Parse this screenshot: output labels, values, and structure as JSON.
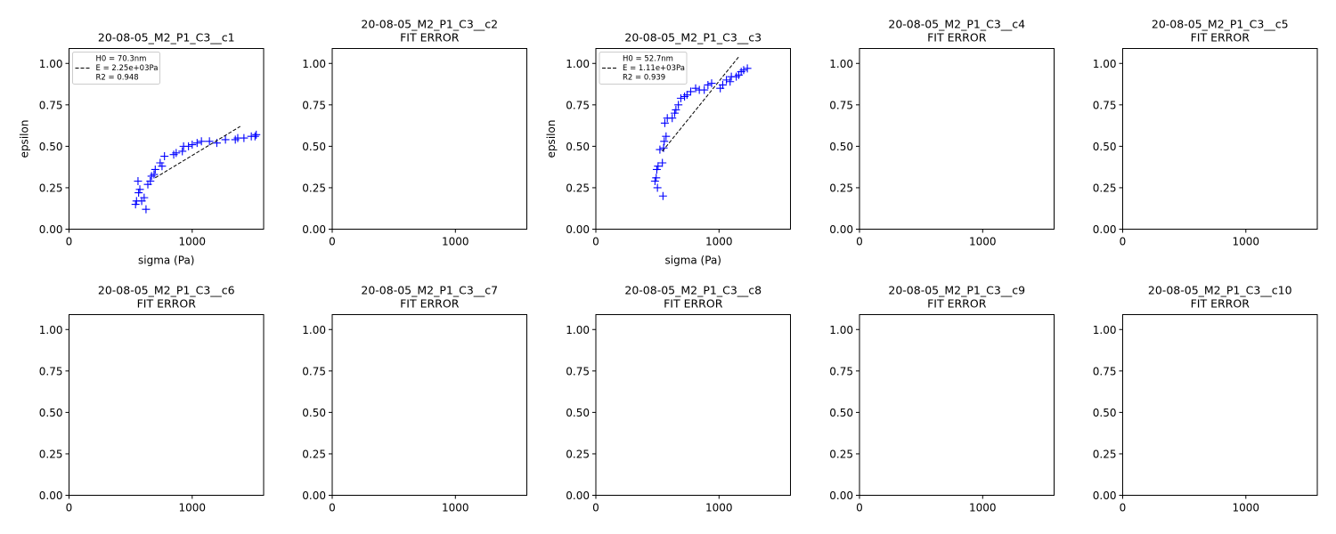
{
  "chart_data": [
    {
      "type": "scatter",
      "title": "20-08-05_M2_P1_C3__c1",
      "subtitle": "",
      "xlabel": "sigma (Pa)",
      "ylabel": "epsilon",
      "xlim": [
        0,
        1580
      ],
      "ylim": [
        0,
        1.09
      ],
      "xticks": [
        0,
        1000
      ],
      "yticks": [
        0.0,
        0.25,
        0.5,
        0.75,
        1.0
      ],
      "yticklabels": [
        "0.00",
        "0.25",
        "0.50",
        "0.75",
        "1.00"
      ],
      "legend": {
        "placement": "top-left",
        "entries": [
          "H0 = 70.3nm",
          "E = 2.25e+03Pa",
          "R2 = 0.948"
        ]
      },
      "series": [
        {
          "marker": "plus",
          "color": "#0000ff",
          "x": [
            540,
            548,
            560,
            565,
            575,
            590,
            610,
            625,
            640,
            660,
            670,
            690,
            700,
            740,
            755,
            775,
            850,
            870,
            920,
            930,
            970,
            1000,
            1040,
            1075,
            1140,
            1200,
            1270,
            1350,
            1370,
            1420,
            1480,
            1510,
            1520
          ],
          "y": [
            0.15,
            0.17,
            0.29,
            0.22,
            0.24,
            0.17,
            0.19,
            0.12,
            0.27,
            0.29,
            0.32,
            0.33,
            0.36,
            0.4,
            0.38,
            0.44,
            0.45,
            0.46,
            0.47,
            0.5,
            0.5,
            0.51,
            0.52,
            0.53,
            0.53,
            0.52,
            0.54,
            0.54,
            0.55,
            0.55,
            0.56,
            0.56,
            0.57
          ]
        },
        {
          "style": "dashed-fit",
          "color": "#000000",
          "x": [
            700,
            1390
          ],
          "y": [
            0.31,
            0.62
          ]
        }
      ]
    },
    {
      "type": "scatter",
      "title": "20-08-05_M2_P1_C3__c2",
      "subtitle": "FIT ERROR",
      "xlim": [
        0,
        1580
      ],
      "ylim": [
        0,
        1.09
      ],
      "xticks": [
        0,
        1000
      ],
      "yticks": [
        0.0,
        0.25,
        0.5,
        0.75,
        1.0
      ],
      "yticklabels": [
        "0.00",
        "0.25",
        "0.50",
        "0.75",
        "1.00"
      ],
      "series": []
    },
    {
      "type": "scatter",
      "title": "20-08-05_M2_P1_C3__c3",
      "subtitle": "",
      "xlabel": "sigma (Pa)",
      "ylabel": "epsilon",
      "xlim": [
        0,
        1580
      ],
      "ylim": [
        0,
        1.09
      ],
      "xticks": [
        0,
        1000
      ],
      "yticks": [
        0.0,
        0.25,
        0.5,
        0.75,
        1.0
      ],
      "yticklabels": [
        "0.00",
        "0.25",
        "0.50",
        "0.75",
        "1.00"
      ],
      "legend": {
        "placement": "top-left",
        "entries": [
          "H0 = 52.7nm",
          "E = 1.11e+03Pa",
          "R2 = 0.939"
        ]
      },
      "series": [
        {
          "marker": "plus",
          "color": "#0000ff",
          "x": [
            480,
            490,
            495,
            500,
            505,
            520,
            540,
            545,
            550,
            555,
            560,
            570,
            580,
            620,
            640,
            650,
            670,
            690,
            720,
            740,
            770,
            810,
            840,
            880,
            910,
            940,
            1010,
            1030,
            1060,
            1090,
            1100,
            1140,
            1160,
            1180,
            1200,
            1230
          ],
          "y": [
            0.29,
            0.31,
            0.36,
            0.25,
            0.38,
            0.48,
            0.4,
            0.2,
            0.49,
            0.53,
            0.64,
            0.56,
            0.67,
            0.67,
            0.7,
            0.72,
            0.75,
            0.79,
            0.8,
            0.81,
            0.83,
            0.85,
            0.84,
            0.84,
            0.87,
            0.88,
            0.85,
            0.87,
            0.9,
            0.89,
            0.92,
            0.92,
            0.93,
            0.95,
            0.96,
            0.97
          ]
        },
        {
          "style": "dashed-fit",
          "color": "#000000",
          "x": [
            540,
            1160
          ],
          "y": [
            0.47,
            1.04
          ]
        }
      ]
    },
    {
      "type": "scatter",
      "title": "20-08-05_M2_P1_C3__c4",
      "subtitle": "FIT ERROR",
      "xlim": [
        0,
        1580
      ],
      "ylim": [
        0,
        1.09
      ],
      "xticks": [
        0,
        1000
      ],
      "yticks": [
        0.0,
        0.25,
        0.5,
        0.75,
        1.0
      ],
      "yticklabels": [
        "0.00",
        "0.25",
        "0.50",
        "0.75",
        "1.00"
      ],
      "series": []
    },
    {
      "type": "scatter",
      "title": "20-08-05_M2_P1_C3__c5",
      "subtitle": "FIT ERROR",
      "xlim": [
        0,
        1580
      ],
      "ylim": [
        0,
        1.09
      ],
      "xticks": [
        0,
        1000
      ],
      "yticks": [
        0.0,
        0.25,
        0.5,
        0.75,
        1.0
      ],
      "yticklabels": [
        "0.00",
        "0.25",
        "0.50",
        "0.75",
        "1.00"
      ],
      "series": []
    },
    {
      "type": "scatter",
      "title": "20-08-05_M2_P1_C3__c6",
      "subtitle": "FIT ERROR",
      "xlim": [
        0,
        1580
      ],
      "ylim": [
        0,
        1.09
      ],
      "xticks": [
        0,
        1000
      ],
      "yticks": [
        0.0,
        0.25,
        0.5,
        0.75,
        1.0
      ],
      "yticklabels": [
        "0.00",
        "0.25",
        "0.50",
        "0.75",
        "1.00"
      ],
      "series": []
    },
    {
      "type": "scatter",
      "title": "20-08-05_M2_P1_C3__c7",
      "subtitle": "FIT ERROR",
      "xlim": [
        0,
        1580
      ],
      "ylim": [
        0,
        1.09
      ],
      "xticks": [
        0,
        1000
      ],
      "yticks": [
        0.0,
        0.25,
        0.5,
        0.75,
        1.0
      ],
      "yticklabels": [
        "0.00",
        "0.25",
        "0.50",
        "0.75",
        "1.00"
      ],
      "series": []
    },
    {
      "type": "scatter",
      "title": "20-08-05_M2_P1_C3__c8",
      "subtitle": "FIT ERROR",
      "xlim": [
        0,
        1580
      ],
      "ylim": [
        0,
        1.09
      ],
      "xticks": [
        0,
        1000
      ],
      "yticks": [
        0.0,
        0.25,
        0.5,
        0.75,
        1.0
      ],
      "yticklabels": [
        "0.00",
        "0.25",
        "0.50",
        "0.75",
        "1.00"
      ],
      "series": []
    },
    {
      "type": "scatter",
      "title": "20-08-05_M2_P1_C3__c9",
      "subtitle": "FIT ERROR",
      "xlim": [
        0,
        1580
      ],
      "ylim": [
        0,
        1.09
      ],
      "xticks": [
        0,
        1000
      ],
      "yticks": [
        0.0,
        0.25,
        0.5,
        0.75,
        1.0
      ],
      "yticklabels": [
        "0.00",
        "0.25",
        "0.50",
        "0.75",
        "1.00"
      ],
      "series": []
    },
    {
      "type": "scatter",
      "title": "20-08-05_M2_P1_C3__c10",
      "subtitle": "FIT ERROR",
      "xlim": [
        0,
        1580
      ],
      "ylim": [
        0,
        1.09
      ],
      "xticks": [
        0,
        1000
      ],
      "yticks": [
        0.0,
        0.25,
        0.5,
        0.75,
        1.0
      ],
      "yticklabels": [
        "0.00",
        "0.25",
        "0.50",
        "0.75",
        "1.00"
      ],
      "series": []
    }
  ]
}
